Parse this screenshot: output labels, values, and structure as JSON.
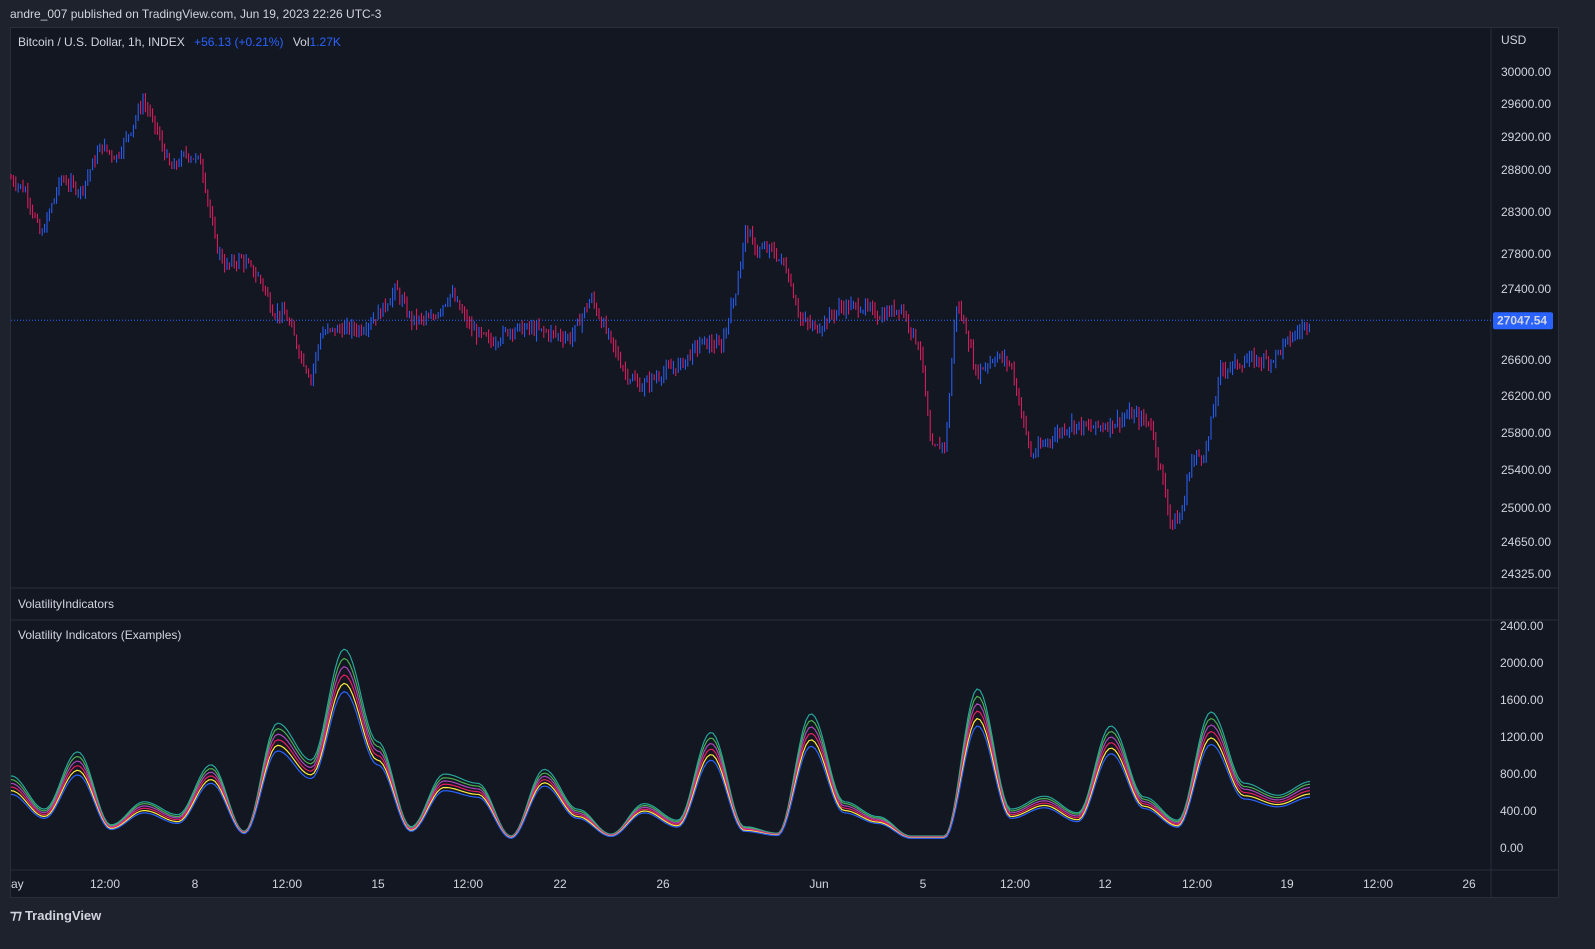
{
  "header": {
    "published": "andre_007 published on TradingView.com, Jun 19, 2023 22:26 UTC-3"
  },
  "legend": {
    "symbol": "Bitcoin / U.S. Dollar, 1h, INDEX",
    "change": "+56.13 (+0.21%)",
    "vol_label": "Vol",
    "vol_value": "1.27K"
  },
  "pane_label": "VolatilityIndicators",
  "osc_label": "Volatility Indicators (Examples)",
  "footer": {
    "logo": "TradingView"
  },
  "colors": {
    "up": "#2962ff",
    "down": "#e91e63",
    "bg": "#131722",
    "price_line": "#2962ff"
  },
  "chart_data": {
    "type": "candlestick",
    "price_axis": {
      "currency": "USD",
      "ticks": [
        "30000.00",
        "29600.00",
        "29200.00",
        "28800.00",
        "28300.00",
        "27800.00",
        "27400.00",
        "26600.00",
        "26200.00",
        "25800.00",
        "25400.00",
        "25000.00",
        "24650.00",
        "24325.00"
      ],
      "last_price": "27047.54"
    },
    "price_anchors_x": [
      0,
      15,
      30,
      50,
      70,
      90,
      105,
      120,
      132,
      145,
      160,
      175,
      190,
      205,
      215,
      230,
      250,
      262,
      275,
      290,
      300,
      310,
      330,
      350,
      370,
      385,
      400,
      420,
      440,
      460,
      480,
      500,
      520,
      540,
      560,
      580,
      600,
      615,
      630,
      650,
      670,
      690,
      710,
      725,
      735,
      745,
      760,
      775,
      790,
      805,
      830,
      850,
      870,
      890,
      910,
      920,
      935,
      945,
      955,
      965,
      975,
      985,
      1000,
      1020,
      1040,
      1060,
      1080,
      1100,
      1120,
      1140,
      1160,
      1170,
      1180,
      1195,
      1210,
      1225,
      1240,
      1260,
      1280,
      1300
    ],
    "price_anchors_y": [
      28700,
      28550,
      28000,
      28700,
      28550,
      29100,
      28950,
      29300,
      29650,
      29300,
      28800,
      29000,
      28900,
      27900,
      27650,
      27750,
      27500,
      27150,
      27100,
      26650,
      26400,
      26900,
      26950,
      26950,
      27150,
      27400,
      27050,
      27050,
      27350,
      26950,
      26800,
      26950,
      26950,
      26900,
      26850,
      27300,
      26800,
      26450,
      26300,
      26450,
      26550,
      26800,
      26750,
      27400,
      28100,
      27850,
      27850,
      27650,
      27050,
      26950,
      27200,
      27200,
      27100,
      27200,
      26700,
      25600,
      25700,
      27250,
      26950,
      26450,
      26550,
      26650,
      26550,
      25550,
      25750,
      25900,
      25850,
      25900,
      26000,
      25900,
      24850,
      24900,
      25500,
      25600,
      26500,
      26550,
      26600,
      26600,
      26850,
      27050
    ],
    "volatility_axis": {
      "ticks": [
        "2400.00",
        "2000.00",
        "1600.00",
        "1200.00",
        "800.00",
        "400.00",
        "0.00"
      ]
    },
    "volatility_series": [
      {
        "name": "",
        "color": "#26a69a",
        "values": [
          780,
          420,
          1040,
          250,
          500,
          360,
          900,
          180,
          1350,
          950,
          2150,
          1150,
          230,
          800,
          700,
          130,
          850,
          420,
          150,
          480,
          300,
          1250,
          230,
          160,
          1450,
          500,
          340,
          130,
          130,
          1720,
          420,
          560,
          380,
          1320,
          550,
          300,
          1470,
          700,
          570,
          720
        ]
      },
      {
        "name": "",
        "color": "#4caf50",
        "values": [
          740,
          400,
          990,
          240,
          480,
          340,
          860,
          175,
          1290,
          910,
          2050,
          1100,
          220,
          760,
          670,
          125,
          810,
          400,
          145,
          460,
          285,
          1190,
          220,
          155,
          1380,
          480,
          325,
          125,
          125,
          1640,
          400,
          535,
          365,
          1260,
          525,
          285,
          1400,
          665,
          545,
          690
        ]
      },
      {
        "name": "",
        "color": "#ab47bc",
        "values": [
          700,
          380,
          940,
          230,
          455,
          325,
          820,
          170,
          1230,
          870,
          1960,
          1050,
          210,
          725,
          640,
          120,
          775,
          380,
          140,
          440,
          270,
          1130,
          210,
          150,
          1310,
          455,
          310,
          120,
          120,
          1560,
          380,
          510,
          345,
          1200,
          500,
          270,
          1330,
          635,
          520,
          655
        ]
      },
      {
        "name": "",
        "color": "#e91e63",
        "values": [
          660,
          360,
          890,
          220,
          430,
          305,
          780,
          165,
          1170,
          830,
          1870,
          1000,
          200,
          690,
          610,
          115,
          740,
          360,
          135,
          420,
          255,
          1070,
          200,
          145,
          1240,
          430,
          295,
          115,
          115,
          1480,
          360,
          485,
          325,
          1140,
          475,
          255,
          1260,
          600,
          495,
          620
        ]
      },
      {
        "name": "",
        "color": "#ffeb3b",
        "values": [
          620,
          340,
          840,
          210,
          405,
          285,
          740,
          160,
          1110,
          790,
          1780,
          950,
          190,
          655,
          580,
          110,
          705,
          340,
          130,
          400,
          240,
          1010,
          190,
          140,
          1170,
          405,
          280,
          110,
          110,
          1400,
          340,
          460,
          305,
          1080,
          450,
          240,
          1190,
          565,
          470,
          585
        ]
      },
      {
        "name": "",
        "color": "#2962ff",
        "values": [
          580,
          320,
          790,
          200,
          380,
          265,
          700,
          155,
          1050,
          750,
          1690,
          900,
          180,
          620,
          550,
          105,
          670,
          320,
          125,
          380,
          225,
          950,
          180,
          135,
          1100,
          380,
          265,
          105,
          105,
          1320,
          320,
          435,
          285,
          1020,
          425,
          225,
          1120,
          530,
          445,
          550
        ]
      }
    ],
    "x_axis": {
      "ticks": [
        "ay",
        "12:00",
        "8",
        "12:00",
        "15",
        "12:00",
        "22",
        "26",
        "Jun",
        "5",
        "12:00",
        "12",
        "12:00",
        "19",
        "12:00",
        "26"
      ]
    }
  }
}
